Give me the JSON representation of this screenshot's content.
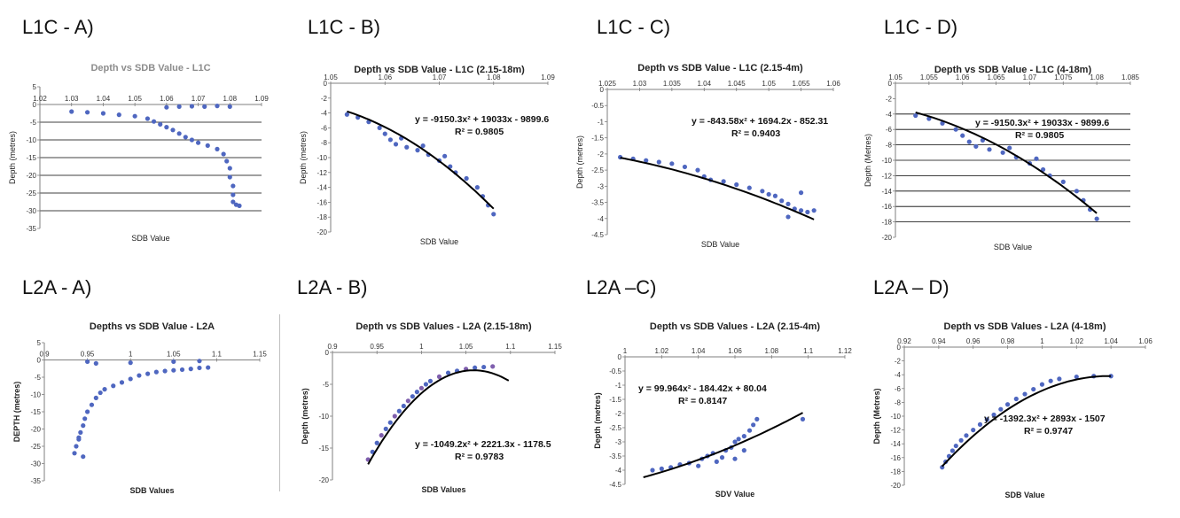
{
  "panel_labels": [
    "L1C - A)",
    "L1C - B)",
    "L1C - C)",
    "L1C - D)",
    "L2A - A)",
    "L2A - B)",
    "L2A –C)",
    "L2A – D)"
  ],
  "colors": {
    "points": "#4f67c0",
    "points_alt": "#7f5fae",
    "trend": "#000000",
    "grid": "#000000",
    "axis": "#7f7f7f",
    "text": "#333333",
    "title_a": "#8c8c8c"
  },
  "chart_data": [
    {
      "type": "scatter",
      "title": "Depth vs SDB Value - L1C",
      "xlabel": "SDB Value",
      "ylabel": "Depth (metres)",
      "xlim": [
        1.02,
        1.09
      ],
      "ylim": [
        -35,
        5
      ],
      "xticks": [
        "1.02",
        "1.03",
        "1.04",
        "1.05",
        "1.06",
        "1.07",
        "1.08",
        "1.09"
      ],
      "yticks": [
        "5",
        "0",
        "-5",
        "-10",
        "-15",
        "-20",
        "-25",
        "-30",
        "-35"
      ],
      "gridlines_y": [
        0,
        -5,
        -10,
        -15,
        -20,
        -25,
        -30
      ],
      "x": [
        1.03,
        1.035,
        1.04,
        1.045,
        1.05,
        1.054,
        1.056,
        1.058,
        1.06,
        1.062,
        1.064,
        1.066,
        1.068,
        1.07,
        1.073,
        1.076,
        1.078,
        1.079,
        1.08,
        1.08,
        1.081,
        1.081,
        1.081,
        1.082,
        1.083,
        1.06,
        1.064,
        1.068,
        1.072,
        1.076,
        1.08
      ],
      "y": [
        -2.0,
        -2.2,
        -2.5,
        -2.9,
        -3.3,
        -4.0,
        -4.8,
        -5.6,
        -6.4,
        -7.2,
        -8.2,
        -9.2,
        -10.0,
        -10.8,
        -11.6,
        -12.6,
        -14.0,
        -16.0,
        -18.0,
        -20.5,
        -23.0,
        -25.5,
        -27.5,
        -28.3,
        -28.6,
        -0.8,
        -0.6,
        -0.5,
        -0.6,
        -0.4,
        -0.6
      ],
      "annotations": []
    },
    {
      "type": "scatter",
      "title": "Depth vs SDB Value - L1C (2.15-18m)",
      "xlabel": "SDB Value",
      "ylabel": "Depth (metres)",
      "xlim": [
        1.05,
        1.09
      ],
      "ylim": [
        -20,
        0
      ],
      "xticks": [
        "1.05",
        "1.06",
        "1.07",
        "1.08",
        "1.09"
      ],
      "yticks": [
        "0",
        "-2",
        "-4",
        "-6",
        "-8",
        "-10",
        "-12",
        "-14",
        "-16",
        "-18",
        "-20"
      ],
      "gridlines_y": [],
      "x": [
        1.053,
        1.055,
        1.057,
        1.059,
        1.06,
        1.061,
        1.062,
        1.064,
        1.066,
        1.068,
        1.07,
        1.072,
        1.073,
        1.075,
        1.077,
        1.078,
        1.079,
        1.08,
        1.063,
        1.067,
        1.071
      ],
      "y": [
        -4.2,
        -4.6,
        -5.2,
        -6.0,
        -6.8,
        -7.6,
        -8.2,
        -8.6,
        -9.0,
        -9.6,
        -10.4,
        -11.2,
        -12.0,
        -12.8,
        -14.0,
        -15.2,
        -16.4,
        -17.6,
        -7.4,
        -8.4,
        -9.8
      ],
      "trend": {
        "a": -9150.3,
        "b": 19033,
        "c": -9899.6,
        "x_range": [
          1.053,
          1.08
        ]
      },
      "annotations": [
        "y = -9150.3x² + 19033x - 9899.6",
        "R² = 0.9805"
      ]
    },
    {
      "type": "scatter",
      "title": "Depth vs SDB Value - L1C (2.15-4m)",
      "xlabel": "SDB Value",
      "ylabel": "Depth (metres)",
      "xlim": [
        1.025,
        1.06
      ],
      "ylim": [
        -4.5,
        0
      ],
      "xticks": [
        "1.025",
        "1.03",
        "1.035",
        "1.04",
        "1.045",
        "1.05",
        "1.055",
        "1.06"
      ],
      "yticks": [
        "0",
        "-0.5",
        "-1",
        "-1.5",
        "-2",
        "-2.5",
        "-3",
        "-3.5",
        "-4",
        "-4.5"
      ],
      "gridlines_y": [],
      "x": [
        1.027,
        1.029,
        1.031,
        1.033,
        1.035,
        1.037,
        1.039,
        1.04,
        1.041,
        1.043,
        1.045,
        1.047,
        1.049,
        1.05,
        1.051,
        1.052,
        1.053,
        1.054,
        1.055,
        1.056,
        1.057,
        1.053,
        1.055
      ],
      "y": [
        -2.1,
        -2.15,
        -2.2,
        -2.25,
        -2.3,
        -2.4,
        -2.5,
        -2.7,
        -2.8,
        -2.85,
        -2.95,
        -3.05,
        -3.15,
        -3.25,
        -3.3,
        -3.45,
        -3.55,
        -3.7,
        -3.75,
        -3.8,
        -3.75,
        -3.95,
        -3.2
      ],
      "trend": {
        "a": -843.58,
        "b": 1694.2,
        "c": -852.31,
        "x_range": [
          1.027,
          1.057
        ]
      },
      "annotations": [
        "y = -843.58x² + 1694.2x - 852.31",
        "R² = 0.9403"
      ]
    },
    {
      "type": "scatter",
      "title": "Depth vs SDB Value - L1C (4-18m)",
      "xlabel": "SDB Value",
      "ylabel": "Depth (Metres)",
      "xlim": [
        1.05,
        1.085
      ],
      "ylim": [
        -20,
        0
      ],
      "xticks": [
        "1.05",
        "1.055",
        "1.06",
        "1.065",
        "1.07",
        "1.075",
        "1.08",
        "1.085"
      ],
      "yticks": [
        "0",
        "-2",
        "-4",
        "-6",
        "-8",
        "-10",
        "-12",
        "-14",
        "-16",
        "-18",
        "-20"
      ],
      "gridlines_y": [
        -4,
        -6,
        -8,
        -10,
        -12,
        -14,
        -16,
        -18
      ],
      "x": [
        1.053,
        1.055,
        1.057,
        1.059,
        1.06,
        1.061,
        1.062,
        1.064,
        1.066,
        1.068,
        1.07,
        1.072,
        1.073,
        1.075,
        1.077,
        1.078,
        1.079,
        1.08,
        1.063,
        1.067,
        1.071
      ],
      "y": [
        -4.2,
        -4.6,
        -5.2,
        -6.0,
        -6.8,
        -7.6,
        -8.2,
        -8.6,
        -9.0,
        -9.6,
        -10.4,
        -11.2,
        -12.0,
        -12.8,
        -14.0,
        -15.2,
        -16.4,
        -17.6,
        -7.4,
        -8.4,
        -9.8
      ],
      "trend": {
        "a": -9150.3,
        "b": 19033,
        "c": -9899.6,
        "x_range": [
          1.053,
          1.08
        ]
      },
      "annotations": [
        "y = -9150.3x² + 19033x - 9899.6",
        "R² = 0.9805"
      ]
    },
    {
      "type": "scatter",
      "title": "Depths vs SDB Value - L2A",
      "xlabel": "SDB Values",
      "ylabel": "DEPTH (metres)",
      "xlim": [
        0.9,
        1.15
      ],
      "ylim": [
        -35,
        5
      ],
      "xticks": [
        "0.9",
        "0.95",
        "1",
        "1.05",
        "1.1",
        "1.15"
      ],
      "yticks": [
        "5",
        "0",
        "-5",
        "-10",
        "-15",
        "-20",
        "-25",
        "-30",
        "-35"
      ],
      "gridlines_y": [],
      "x": [
        0.935,
        0.937,
        0.94,
        0.942,
        0.945,
        0.947,
        0.95,
        0.955,
        0.96,
        0.965,
        0.97,
        0.98,
        0.99,
        1.0,
        1.01,
        1.02,
        1.03,
        1.04,
        1.05,
        1.06,
        1.07,
        1.08,
        1.09,
        0.95,
        0.96,
        1.0,
        1.05,
        1.08,
        0.94,
        0.945
      ],
      "y": [
        -27.0,
        -25.0,
        -23.0,
        -21.0,
        -19.0,
        -17.0,
        -15.0,
        -13.0,
        -11.0,
        -9.5,
        -8.5,
        -7.5,
        -6.5,
        -5.5,
        -4.5,
        -4.0,
        -3.5,
        -3.2,
        -3.0,
        -2.8,
        -2.6,
        -2.3,
        -2.2,
        -0.5,
        -1.0,
        -0.8,
        -0.5,
        -0.3,
        -22.5,
        -28.0
      ],
      "annotations": []
    },
    {
      "type": "scatter",
      "title": "Depth vs SDB Values  - L2A (2.15-18m)",
      "xlabel": "SDB Values",
      "ylabel": "Depth (metres)",
      "xlim": [
        0.9,
        1.15
      ],
      "ylim": [
        -20,
        0
      ],
      "xticks": [
        "0.9",
        "0.95",
        "1",
        "1.05",
        "1.1",
        "1.15"
      ],
      "yticks": [
        "0",
        "-5",
        "-10",
        "-15",
        "-20"
      ],
      "gridlines_y": [],
      "x": [
        0.94,
        0.945,
        0.95,
        0.955,
        0.96,
        0.965,
        0.97,
        0.975,
        0.98,
        0.985,
        0.99,
        0.995,
        1.0,
        1.005,
        1.01,
        1.02,
        1.03,
        1.04,
        1.05,
        1.06,
        1.07,
        1.08
      ],
      "y": [
        -16.8,
        -15.6,
        -14.2,
        -13.0,
        -12.0,
        -11.0,
        -10.0,
        -9.2,
        -8.4,
        -7.6,
        -6.9,
        -6.2,
        -5.6,
        -5.0,
        -4.5,
        -3.8,
        -3.2,
        -2.9,
        -2.6,
        -2.4,
        -2.3,
        -2.2
      ],
      "trend": {
        "a": -1049.2,
        "b": 2221.3,
        "c": -1178.5,
        "x_range": [
          0.94,
          1.098
        ]
      },
      "annotations": [
        "y = -1049.2x² + 2221.3x - 1178.5",
        "R² = 0.9783"
      ]
    },
    {
      "type": "scatter",
      "title": "Depth vs SDB Values - L2A (2.15-4m)",
      "xlabel": "SDV Value",
      "ylabel": "Depth (metres)",
      "xlim": [
        1.0,
        1.12
      ],
      "ylim": [
        -4.5,
        0
      ],
      "xticks": [
        "1",
        "1.02",
        "1.04",
        "1.06",
        "1.08",
        "1.1",
        "1.12"
      ],
      "yticks": [
        "0",
        "-0.5",
        "-1",
        "-1.5",
        "-2",
        "-2.5",
        "-3",
        "-3.5",
        "-4",
        "-4.5"
      ],
      "gridlines_y": [],
      "x": [
        1.015,
        1.02,
        1.025,
        1.03,
        1.035,
        1.04,
        1.042,
        1.045,
        1.048,
        1.05,
        1.053,
        1.055,
        1.058,
        1.06,
        1.062,
        1.065,
        1.068,
        1.07,
        1.072,
        1.06,
        1.065,
        1.097
      ],
      "y": [
        -4.0,
        -3.95,
        -3.9,
        -3.8,
        -3.75,
        -3.85,
        -3.6,
        -3.5,
        -3.4,
        -3.7,
        -3.55,
        -3.3,
        -3.2,
        -3.0,
        -2.9,
        -2.8,
        -2.6,
        -2.4,
        -2.2,
        -3.6,
        -3.3,
        -2.2
      ],
      "trend": {
        "a": 99.964,
        "b": -184.42,
        "c": 80.04,
        "x_range": [
          1.01,
          1.097
        ]
      },
      "annotations": [
        "y = 99.964x² - 184.42x + 80.04",
        "R² = 0.8147"
      ]
    },
    {
      "type": "scatter",
      "title": "Depth vs SDB Values - L2A (4-18m)",
      "xlabel": "SDB Value",
      "ylabel": "Depth (Metres)",
      "xlim": [
        0.92,
        1.06
      ],
      "ylim": [
        -20,
        0
      ],
      "xticks": [
        "0.92",
        "0.94",
        "0.96",
        "0.98",
        "1",
        "1.02",
        "1.04",
        "1.06"
      ],
      "yticks": [
        "0",
        "-2",
        "-4",
        "-6",
        "-8",
        "-10",
        "-12",
        "-14",
        "-16",
        "-18",
        "-20"
      ],
      "gridlines_y": [],
      "x": [
        0.942,
        0.944,
        0.946,
        0.948,
        0.95,
        0.953,
        0.956,
        0.96,
        0.964,
        0.968,
        0.972,
        0.976,
        0.98,
        0.985,
        0.99,
        0.995,
        1.0,
        1.005,
        1.01,
        1.02,
        1.03,
        1.04
      ],
      "y": [
        -17.4,
        -16.6,
        -15.8,
        -15.0,
        -14.3,
        -13.5,
        -12.8,
        -12.0,
        -11.2,
        -10.5,
        -9.8,
        -9.0,
        -8.3,
        -7.5,
        -6.8,
        -6.1,
        -5.4,
        -4.9,
        -4.6,
        -4.3,
        -4.2,
        -4.2
      ],
      "trend": {
        "a": -1392.3,
        "b": 2893,
        "c": -1507,
        "x_range": [
          0.942,
          1.04
        ]
      },
      "annotations": [
        "y = -1392.3x² + 2893x - 1507",
        "R² = 0.9747"
      ]
    }
  ]
}
